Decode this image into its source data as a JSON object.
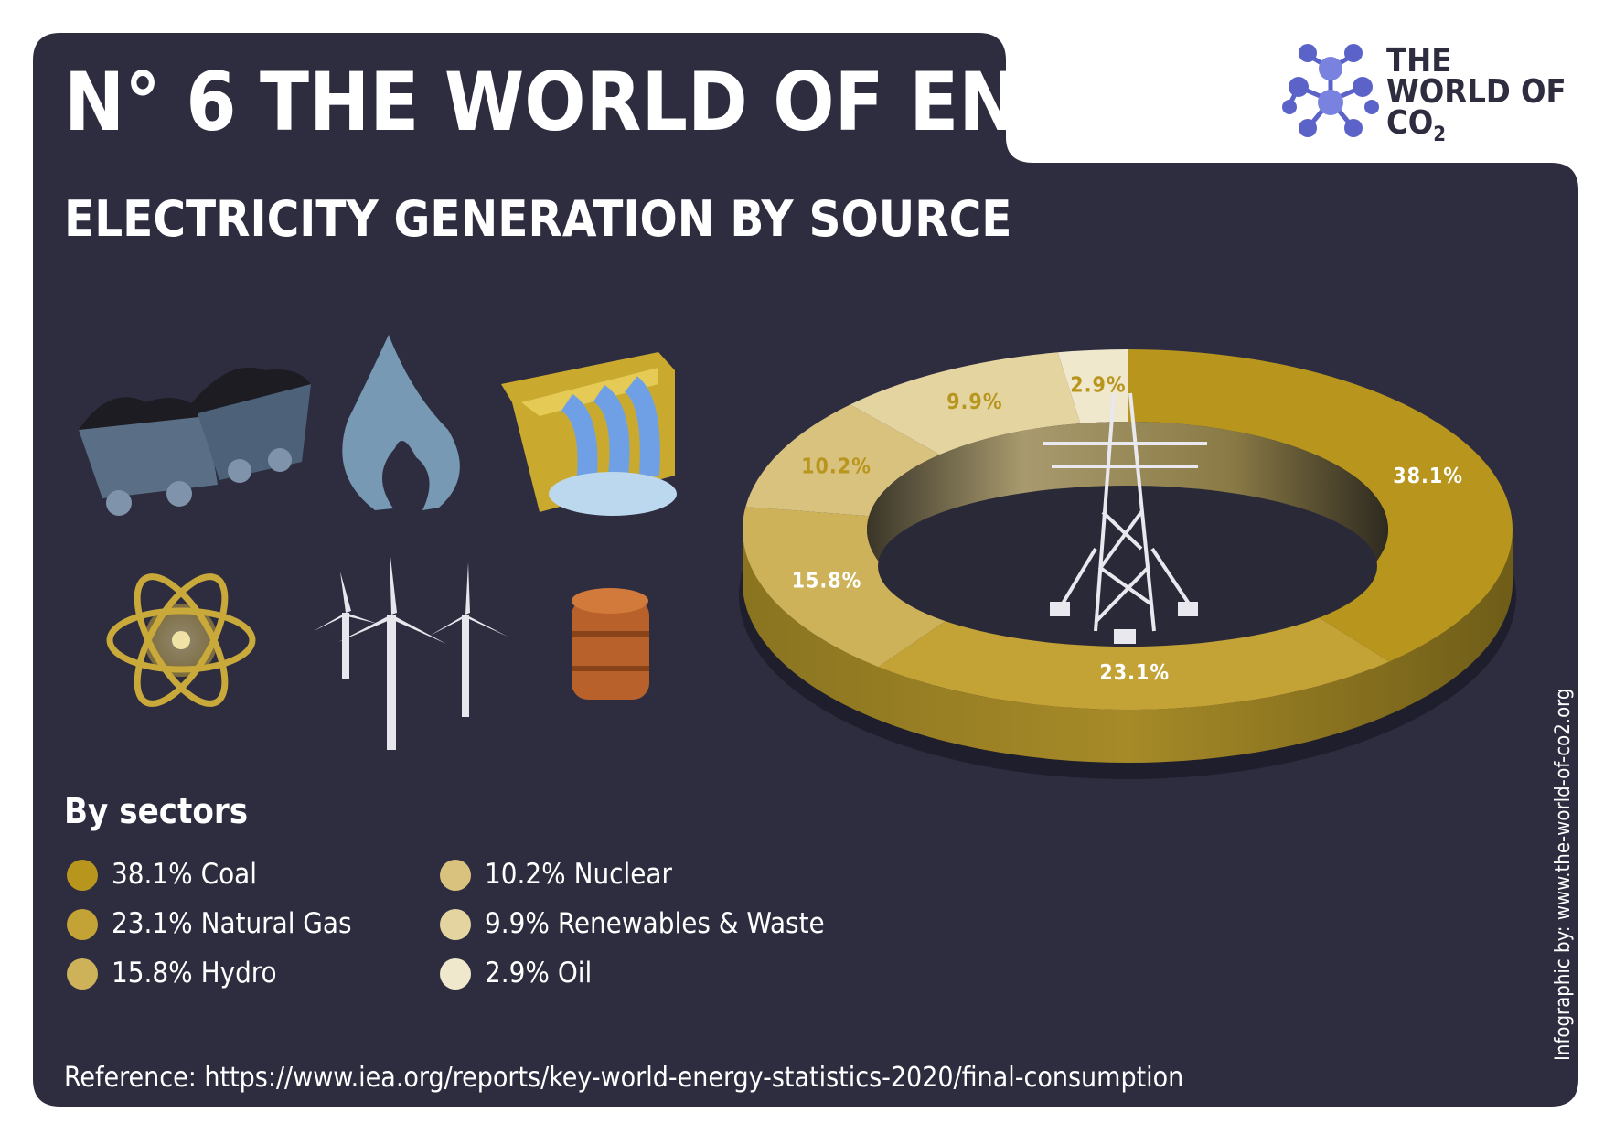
{
  "header": {
    "number": "N° 6",
    "title": "THE WORLD OF ENERGY"
  },
  "logo": {
    "line1": "THE",
    "line2": "WORLD OF",
    "line3": "CO",
    "subscript": "2"
  },
  "chart_data": {
    "type": "pie",
    "title": "ELECTRICITY GENERATION BY SOURCE",
    "legend_title": "By sectors",
    "categories": [
      "Coal",
      "Natural Gas",
      "Hydro",
      "Nuclear",
      "Renewables & Waste",
      "Oil"
    ],
    "values": [
      38.1,
      23.1,
      15.8,
      10.2,
      9.9,
      2.9
    ],
    "value_labels": [
      "38.1%",
      "23.1%",
      "15.8%",
      "10.2%",
      "9.9%",
      "2.9%"
    ],
    "colors": [
      "#b8961e",
      "#c3a236",
      "#cdb25a",
      "#d8c27d",
      "#e3d4a0",
      "#efe8cc"
    ]
  },
  "reference": "Reference: https://www.iea.org/reports/key-world-energy-statistics-2020/final-consumption",
  "credit": "Infographic by: www.the-world-of-co2.org"
}
